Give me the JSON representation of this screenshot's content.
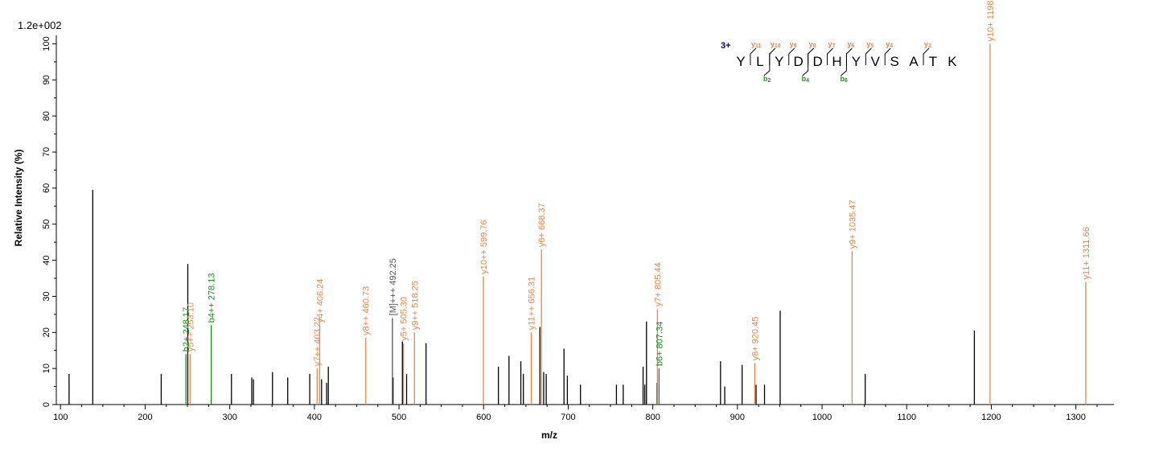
{
  "scale_label": "1.2e+002",
  "colors": {
    "unannotated": "#000000",
    "y_ion": "#e8864a",
    "b_ion": "#1a8a1a",
    "precursor": "#555555",
    "charge": "#000080"
  },
  "chart_data": {
    "type": "bar",
    "xlabel": "m/z",
    "ylabel": "Relative   Intensity (%)",
    "xlim": [
      95,
      1345
    ],
    "ylim": [
      0,
      101
    ],
    "x_ticks": [
      100,
      200,
      300,
      400,
      500,
      600,
      700,
      800,
      900,
      1000,
      1100,
      1200,
      1300
    ],
    "y_ticks": [
      0,
      10,
      20,
      30,
      40,
      50,
      60,
      70,
      80,
      90,
      100
    ],
    "peaks": [
      {
        "mz": 110.1,
        "intensity": 8.5
      },
      {
        "mz": 138.1,
        "intensity": 59.5
      },
      {
        "mz": 219.0,
        "intensity": 8.5
      },
      {
        "mz": 250.4,
        "intensity": 39.0
      },
      {
        "mz": 302.0,
        "intensity": 8.5
      },
      {
        "mz": 326.0,
        "intensity": 7.5
      },
      {
        "mz": 328.0,
        "intensity": 7.0
      },
      {
        "mz": 350.5,
        "intensity": 9.0
      },
      {
        "mz": 368.5,
        "intensity": 7.5
      },
      {
        "mz": 394.5,
        "intensity": 8.5
      },
      {
        "mz": 408.5,
        "intensity": 7.0
      },
      {
        "mz": 414.5,
        "intensity": 6.0
      },
      {
        "mz": 416.5,
        "intensity": 10.5
      },
      {
        "mz": 493.0,
        "intensity": 7.5
      },
      {
        "mz": 504.0,
        "intensity": 17.5
      },
      {
        "mz": 509.0,
        "intensity": 8.5
      },
      {
        "mz": 532.0,
        "intensity": 17.0
      },
      {
        "mz": 617.5,
        "intensity": 10.5
      },
      {
        "mz": 630.0,
        "intensity": 13.5
      },
      {
        "mz": 644.0,
        "intensity": 12.0
      },
      {
        "mz": 647.0,
        "intensity": 8.5
      },
      {
        "mz": 666.5,
        "intensity": 21.5
      },
      {
        "mz": 671.0,
        "intensity": 9.0
      },
      {
        "mz": 674.0,
        "intensity": 8.5
      },
      {
        "mz": 695.0,
        "intensity": 15.5
      },
      {
        "mz": 699.0,
        "intensity": 8.0
      },
      {
        "mz": 714.5,
        "intensity": 5.5
      },
      {
        "mz": 757.0,
        "intensity": 5.5
      },
      {
        "mz": 765.0,
        "intensity": 5.5
      },
      {
        "mz": 788.5,
        "intensity": 10.5
      },
      {
        "mz": 790.5,
        "intensity": 5.5
      },
      {
        "mz": 792.5,
        "intensity": 23.0
      },
      {
        "mz": 805.0,
        "intensity": 6.0
      },
      {
        "mz": 880.0,
        "intensity": 12.0
      },
      {
        "mz": 885.0,
        "intensity": 5.0
      },
      {
        "mz": 905.5,
        "intensity": 11.0
      },
      {
        "mz": 922.0,
        "intensity": 5.5
      },
      {
        "mz": 932.0,
        "intensity": 5.5
      },
      {
        "mz": 950.5,
        "intensity": 26.0
      },
      {
        "mz": 1051.0,
        "intensity": 8.5
      },
      {
        "mz": 1180.0,
        "intensity": 20.5
      }
    ],
    "annotated_peaks": [
      {
        "mz": 248.17,
        "intensity": 14.0,
        "ion": "b",
        "label": "b2+ 248.17"
      },
      {
        "mz": 253.1,
        "intensity": 14.0,
        "ion": "y",
        "label": "y5++ 253.10"
      },
      {
        "mz": 278.13,
        "intensity": 22.0,
        "ion": "b",
        "label": "b4++ 278.13"
      },
      {
        "mz": 403.22,
        "intensity": 10.0,
        "ion": "y",
        "label": "y7++ 403.22"
      },
      {
        "mz": 406.24,
        "intensity": 22.0,
        "ion": "y",
        "label": "y4+ 406.24"
      },
      {
        "mz": 460.73,
        "intensity": 18.5,
        "ion": "y",
        "label": "y8++ 460.73"
      },
      {
        "mz": 492.25,
        "intensity": 24.0,
        "ion": "precursor",
        "label": "[M]+++ 492.25"
      },
      {
        "mz": 505.3,
        "intensity": 17.0,
        "ion": "y",
        "label": "y5+ 505.30"
      },
      {
        "mz": 518.25,
        "intensity": 20.0,
        "ion": "y",
        "label": "y9++ 518.25"
      },
      {
        "mz": 599.76,
        "intensity": 35.5,
        "ion": "y",
        "label": "y10++ 599.76"
      },
      {
        "mz": 656.31,
        "intensity": 20.0,
        "ion": "y",
        "label": "y11++ 656.31"
      },
      {
        "mz": 668.37,
        "intensity": 43.0,
        "ion": "y",
        "label": "y6+ 668.37"
      },
      {
        "mz": 805.44,
        "intensity": 26.5,
        "ion": "y",
        "label": "y7+ 805.44"
      },
      {
        "mz": 807.34,
        "intensity": 10.0,
        "ion": "b",
        "label": "b6+ 807.34"
      },
      {
        "mz": 920.45,
        "intensity": 11.5,
        "ion": "y",
        "label": "y8+ 920.45"
      },
      {
        "mz": 1035.47,
        "intensity": 42.5,
        "ion": "y",
        "label": "y9+ 1035.47"
      },
      {
        "mz": 1198.56,
        "intensity": 100.0,
        "ion": "y",
        "label": "y10+ 1198.56"
      },
      {
        "mz": 1311.66,
        "intensity": 34.0,
        "ion": "y",
        "label": "y11+ 1311.66"
      }
    ]
  },
  "sequence": {
    "charge": "3+",
    "residues": [
      "Y",
      "L",
      "Y",
      "D",
      "D",
      "H",
      "Y",
      "V",
      "S",
      "A",
      "T",
      "K"
    ],
    "y_ions": [
      {
        "after": 1,
        "name": "y",
        "sub": "11"
      },
      {
        "after": 2,
        "name": "y",
        "sub": "10"
      },
      {
        "after": 3,
        "name": "y",
        "sub": "9"
      },
      {
        "after": 4,
        "name": "y",
        "sub": "8"
      },
      {
        "after": 5,
        "name": "y",
        "sub": "7"
      },
      {
        "after": 6,
        "name": "y",
        "sub": "6"
      },
      {
        "after": 7,
        "name": "y",
        "sub": "5"
      },
      {
        "after": 8,
        "name": "y",
        "sub": "4"
      },
      {
        "after": 10,
        "name": "y",
        "sub": "2"
      }
    ],
    "b_ions": [
      {
        "after": 2,
        "name": "b",
        "sub": "2"
      },
      {
        "after": 4,
        "name": "b",
        "sub": "4"
      },
      {
        "after": 6,
        "name": "b",
        "sub": "6"
      }
    ]
  }
}
